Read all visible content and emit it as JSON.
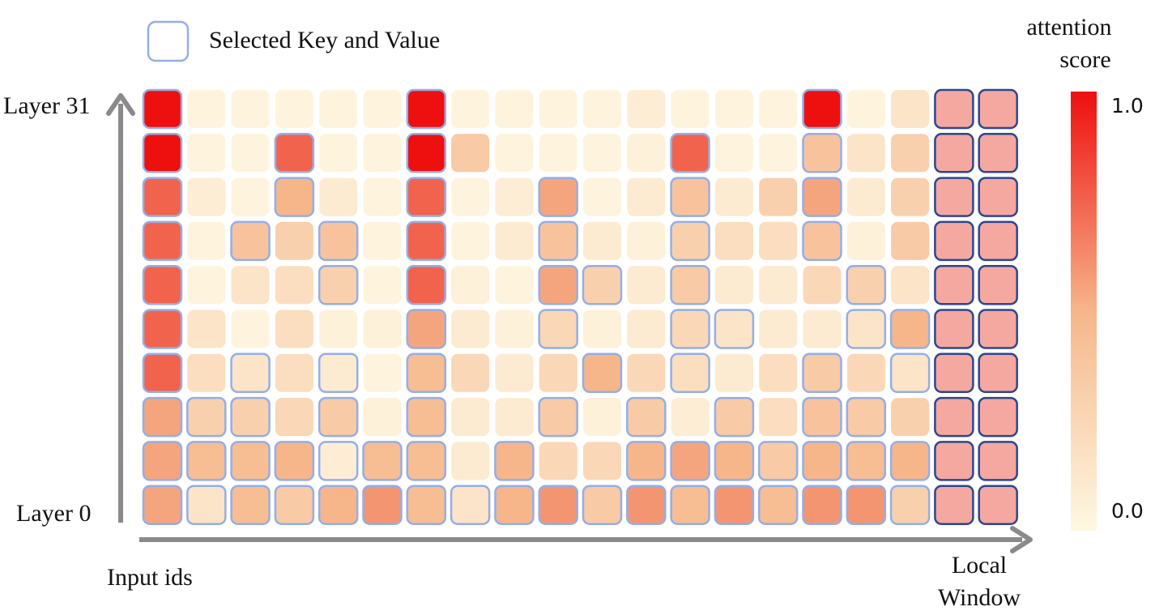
{
  "legend": {
    "label": "Selected Key and Value",
    "colorbar_title_line1": "attention",
    "colorbar_title_line2": "score",
    "max_label": "1.0",
    "min_label": "0.0"
  },
  "axes": {
    "y_top_label": "Layer 31",
    "y_bottom_label": "Layer 0",
    "x_label": "Input ids",
    "x_end_label_line1": "Local",
    "x_end_label_line2": "Window"
  },
  "colors": {
    "score_low": "#fef8e3",
    "score_mid": "#f6b68a",
    "score_high": "#ee0f0f",
    "selected_border": "#94aee6",
    "local_window_border": "#2c468e",
    "local_window_fill": "#f4a8a0",
    "axis_arrow": "#8a8a8a"
  },
  "chart_data": {
    "type": "heatmap",
    "rows": 10,
    "cols": 20,
    "row_order": "top row = Layer 31, bottom row = Layer 0",
    "local_window_cols": [
      18,
      19
    ],
    "scores": [
      [
        1.0,
        0.03,
        0.03,
        0.03,
        0.03,
        0.03,
        1.0,
        0.03,
        0.03,
        0.03,
        0.03,
        0.08,
        0.03,
        0.03,
        0.03,
        1.0,
        0.03,
        0.15,
        0.45,
        0.45
      ],
      [
        1.0,
        0.03,
        0.03,
        0.75,
        0.03,
        0.03,
        1.0,
        0.35,
        0.03,
        0.03,
        0.03,
        0.05,
        0.75,
        0.03,
        0.03,
        0.4,
        0.15,
        0.3,
        0.45,
        0.45
      ],
      [
        0.75,
        0.08,
        0.03,
        0.5,
        0.1,
        0.03,
        0.75,
        0.03,
        0.08,
        0.55,
        0.03,
        0.1,
        0.4,
        0.1,
        0.3,
        0.55,
        0.1,
        0.3,
        0.45,
        0.45
      ],
      [
        0.75,
        0.03,
        0.4,
        0.3,
        0.4,
        0.03,
        0.75,
        0.03,
        0.1,
        0.4,
        0.1,
        0.05,
        0.3,
        0.2,
        0.2,
        0.4,
        0.05,
        0.35,
        0.45,
        0.45
      ],
      [
        0.75,
        0.03,
        0.15,
        0.2,
        0.3,
        0.03,
        0.75,
        0.05,
        0.03,
        0.55,
        0.3,
        0.1,
        0.35,
        0.1,
        0.1,
        0.25,
        0.3,
        0.15,
        0.45,
        0.45
      ],
      [
        0.75,
        0.15,
        0.03,
        0.2,
        0.05,
        0.05,
        0.55,
        0.1,
        0.05,
        0.25,
        0.05,
        0.1,
        0.25,
        0.15,
        0.1,
        0.1,
        0.15,
        0.5,
        0.45,
        0.45
      ],
      [
        0.75,
        0.2,
        0.15,
        0.2,
        0.1,
        0.03,
        0.45,
        0.25,
        0.1,
        0.25,
        0.5,
        0.25,
        0.2,
        0.1,
        0.2,
        0.35,
        0.25,
        0.15,
        0.45,
        0.45
      ],
      [
        0.55,
        0.3,
        0.3,
        0.25,
        0.35,
        0.05,
        0.45,
        0.1,
        0.1,
        0.35,
        0.05,
        0.35,
        0.08,
        0.35,
        0.2,
        0.4,
        0.35,
        0.3,
        0.45,
        0.45
      ],
      [
        0.55,
        0.45,
        0.45,
        0.5,
        0.08,
        0.45,
        0.45,
        0.1,
        0.5,
        0.25,
        0.25,
        0.5,
        0.55,
        0.5,
        0.35,
        0.5,
        0.45,
        0.5,
        0.45,
        0.45
      ],
      [
        0.55,
        0.15,
        0.45,
        0.35,
        0.5,
        0.6,
        0.45,
        0.15,
        0.5,
        0.6,
        0.35,
        0.6,
        0.45,
        0.6,
        0.45,
        0.6,
        0.6,
        0.3,
        0.45,
        0.45
      ]
    ],
    "selected": [
      [
        1,
        0,
        0,
        0,
        0,
        0,
        1,
        0,
        0,
        0,
        0,
        0,
        0,
        0,
        0,
        1,
        0,
        0,
        1,
        1
      ],
      [
        1,
        0,
        0,
        1,
        0,
        0,
        1,
        0,
        0,
        0,
        0,
        0,
        1,
        0,
        0,
        1,
        0,
        0,
        1,
        1
      ],
      [
        1,
        0,
        0,
        1,
        0,
        0,
        1,
        0,
        0,
        1,
        0,
        0,
        1,
        0,
        0,
        1,
        0,
        0,
        1,
        1
      ],
      [
        1,
        0,
        1,
        0,
        1,
        0,
        1,
        0,
        0,
        1,
        0,
        0,
        1,
        0,
        0,
        1,
        0,
        0,
        1,
        1
      ],
      [
        1,
        0,
        0,
        0,
        1,
        0,
        1,
        0,
        0,
        1,
        1,
        0,
        1,
        0,
        0,
        0,
        1,
        0,
        1,
        1
      ],
      [
        1,
        0,
        0,
        0,
        0,
        0,
        1,
        0,
        0,
        1,
        0,
        0,
        1,
        1,
        0,
        0,
        1,
        1,
        1,
        1
      ],
      [
        1,
        0,
        1,
        0,
        1,
        0,
        1,
        0,
        0,
        0,
        1,
        0,
        1,
        0,
        0,
        1,
        0,
        1,
        1,
        1
      ],
      [
        1,
        1,
        1,
        0,
        1,
        0,
        1,
        0,
        0,
        1,
        0,
        1,
        0,
        1,
        0,
        1,
        1,
        0,
        1,
        1
      ],
      [
        1,
        1,
        1,
        1,
        1,
        1,
        1,
        0,
        1,
        0,
        0,
        1,
        1,
        1,
        1,
        1,
        1,
        1,
        1,
        1
      ],
      [
        1,
        1,
        1,
        1,
        1,
        1,
        1,
        1,
        1,
        1,
        1,
        1,
        1,
        1,
        1,
        1,
        1,
        1,
        1,
        1
      ]
    ]
  }
}
